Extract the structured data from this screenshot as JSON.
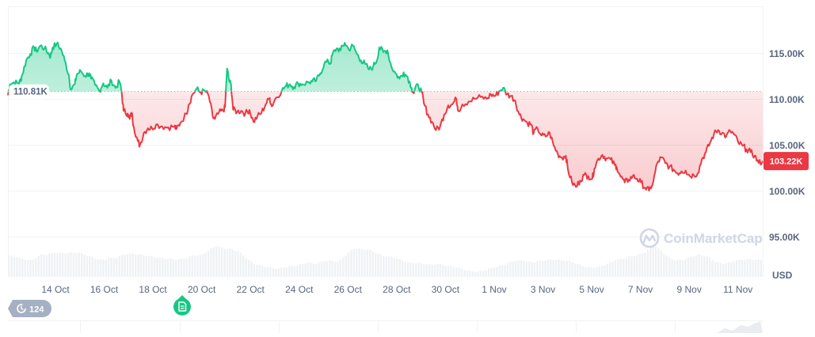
{
  "chart_data": {
    "type": "line",
    "title": "",
    "currency_label": "USD",
    "watermark": "CoinMarketCap",
    "baseline": {
      "value": 110.81,
      "label": "110.81K"
    },
    "current_price": {
      "value": 103.22,
      "label": "103.22K",
      "color": "#ea3943"
    },
    "colors": {
      "up": "#16c784",
      "down": "#ea3943",
      "volume": "#eff2f5",
      "grid": "#eff2f5",
      "axis_text": "#58667e"
    },
    "y_axis": {
      "ticks": [
        {
          "value": 115,
          "label": "115.00K"
        },
        {
          "value": 110,
          "label": "110.00K"
        },
        {
          "value": 105,
          "label": "105.00K"
        },
        {
          "value": 100,
          "label": "100.00K"
        },
        {
          "value": 95,
          "label": "95.00K"
        }
      ],
      "ylim": [
        92,
        119.5
      ]
    },
    "x_axis": {
      "ticks": [
        "14 Oct",
        "16 Oct",
        "18 Oct",
        "20 Oct",
        "22 Oct",
        "24 Oct",
        "26 Oct",
        "28 Oct",
        "30 Oct",
        "1 Nov",
        "3 Nov",
        "5 Nov",
        "7 Nov",
        "9 Nov",
        "11 Nov"
      ],
      "range_days": [
        12.0,
        43.0
      ]
    },
    "x_unit": "day index (Oct 1 = 1)",
    "y_unit": "thousands USD",
    "series": [
      {
        "name": "price",
        "points": [
          [
            12.0,
            110.4
          ],
          [
            12.1,
            111.6
          ],
          [
            12.3,
            111.8
          ],
          [
            12.5,
            111.7
          ],
          [
            12.6,
            111.9
          ],
          [
            12.7,
            112.6
          ],
          [
            12.9,
            114.2
          ],
          [
            13.1,
            114.9
          ],
          [
            13.3,
            115.6
          ],
          [
            13.4,
            115.2
          ],
          [
            13.6,
            115.8
          ],
          [
            13.8,
            115.5
          ],
          [
            14.0,
            115.0
          ],
          [
            14.1,
            114.6
          ],
          [
            14.2,
            115.6
          ],
          [
            14.4,
            116.0
          ],
          [
            14.6,
            115.5
          ],
          [
            14.8,
            114.2
          ],
          [
            15.0,
            112.6
          ],
          [
            15.1,
            111.0
          ],
          [
            15.3,
            111.6
          ],
          [
            15.4,
            112.7
          ],
          [
            15.6,
            113.0
          ],
          [
            15.8,
            112.5
          ],
          [
            16.0,
            112.8
          ],
          [
            16.1,
            112.2
          ],
          [
            16.3,
            111.5
          ],
          [
            16.5,
            110.9
          ],
          [
            16.7,
            111.7
          ],
          [
            16.9,
            111.2
          ],
          [
            17.1,
            112.0
          ],
          [
            17.3,
            111.2
          ],
          [
            17.5,
            111.9
          ],
          [
            17.6,
            110.8
          ],
          [
            17.7,
            108.7
          ],
          [
            17.9,
            108.4
          ],
          [
            18.0,
            107.8
          ],
          [
            18.1,
            108.5
          ],
          [
            18.2,
            107.0
          ],
          [
            18.4,
            105.4
          ],
          [
            18.5,
            104.9
          ],
          [
            18.7,
            106.3
          ],
          [
            18.9,
            106.8
          ],
          [
            19.1,
            106.8
          ],
          [
            19.3,
            107.2
          ],
          [
            19.6,
            107.0
          ],
          [
            19.9,
            106.9
          ],
          [
            20.2,
            107.0
          ],
          [
            20.3,
            106.7
          ],
          [
            20.5,
            107.4
          ],
          [
            20.8,
            108.4
          ],
          [
            20.9,
            109.3
          ],
          [
            21.1,
            110.5
          ],
          [
            21.3,
            111.1
          ],
          [
            21.5,
            110.7
          ],
          [
            21.7,
            110.9
          ],
          [
            21.9,
            110.3
          ],
          [
            22.1,
            108.0
          ],
          [
            22.2,
            107.8
          ],
          [
            22.4,
            108.5
          ],
          [
            22.6,
            108.7
          ],
          [
            22.7,
            109.1
          ],
          [
            22.8,
            113.3
          ],
          [
            22.9,
            112.0
          ],
          [
            23.0,
            111.5
          ],
          [
            23.1,
            108.8
          ],
          [
            23.3,
            108.6
          ],
          [
            23.5,
            108.7
          ],
          [
            23.7,
            108.4
          ],
          [
            23.9,
            108.8
          ],
          [
            24.1,
            107.5
          ],
          [
            24.3,
            108.1
          ],
          [
            24.5,
            108.5
          ],
          [
            24.7,
            109.4
          ],
          [
            24.9,
            110.1
          ],
          [
            25.0,
            109.2
          ],
          [
            25.2,
            110.1
          ],
          [
            25.5,
            110.9
          ],
          [
            25.7,
            111.4
          ],
          [
            25.9,
            111.6
          ],
          [
            26.1,
            111.3
          ],
          [
            26.3,
            111.7
          ],
          [
            26.5,
            111.6
          ],
          [
            26.8,
            111.8
          ],
          [
            27.0,
            111.9
          ],
          [
            27.2,
            112.0
          ],
          [
            27.4,
            112.8
          ],
          [
            27.6,
            113.9
          ],
          [
            27.8,
            114.0
          ],
          [
            27.9,
            113.9
          ],
          [
            28.0,
            114.9
          ],
          [
            28.2,
            115.5
          ],
          [
            28.4,
            115.3
          ],
          [
            28.6,
            116.1
          ],
          [
            28.8,
            115.4
          ],
          [
            29.0,
            115.8
          ],
          [
            29.2,
            114.9
          ],
          [
            29.4,
            114.2
          ],
          [
            29.6,
            113.8
          ],
          [
            29.8,
            113.2
          ],
          [
            30.0,
            113.5
          ],
          [
            30.2,
            114.3
          ],
          [
            30.3,
            115.6
          ],
          [
            30.5,
            115.1
          ],
          [
            30.7,
            115.3
          ],
          [
            30.9,
            113.5
          ],
          [
            31.1,
            112.8
          ],
          [
            31.3,
            112.2
          ],
          [
            31.5,
            112.9
          ],
          [
            31.7,
            112.4
          ],
          [
            31.9,
            111.2
          ],
          [
            32.0,
            110.6
          ],
          [
            32.2,
            111.6
          ],
          [
            32.4,
            110.7
          ],
          [
            32.5,
            109.5
          ],
          [
            32.7,
            108.3
          ],
          [
            32.9,
            107.5
          ],
          [
            33.1,
            106.6
          ],
          [
            33.3,
            107.0
          ],
          [
            33.5,
            108.3
          ],
          [
            33.7,
            109.3
          ],
          [
            33.9,
            109.4
          ],
          [
            34.1,
            110.0
          ],
          [
            34.2,
            108.7
          ],
          [
            34.4,
            109.4
          ],
          [
            34.7,
            109.7
          ],
          [
            35.0,
            110.0
          ],
          [
            35.3,
            110.2
          ],
          [
            35.6,
            110.0
          ],
          [
            35.8,
            110.5
          ],
          [
            36.0,
            110.3
          ],
          [
            36.2,
            110.8
          ],
          [
            36.4,
            111.2
          ],
          [
            36.6,
            110.5
          ],
          [
            36.8,
            110.3
          ],
          [
            37.0,
            109.8
          ],
          [
            37.2,
            108.3
          ],
          [
            37.4,
            107.8
          ],
          [
            37.6,
            107.4
          ],
          [
            37.8,
            107.2
          ],
          [
            37.9,
            106.2
          ],
          [
            38.1,
            106.8
          ],
          [
            38.3,
            106.0
          ],
          [
            38.5,
            105.9
          ],
          [
            38.7,
            106.3
          ],
          [
            38.9,
            104.9
          ],
          [
            39.1,
            104.0
          ],
          [
            39.3,
            103.6
          ],
          [
            39.5,
            103.8
          ],
          [
            39.6,
            102.3
          ],
          [
            39.8,
            100.9
          ],
          [
            40.0,
            100.4
          ],
          [
            40.2,
            101.1
          ],
          [
            40.4,
            101.7
          ],
          [
            40.6,
            101.6
          ],
          [
            40.8,
            101.3
          ],
          [
            40.9,
            102.4
          ],
          [
            41.1,
            103.5
          ],
          [
            41.3,
            103.9
          ],
          [
            41.5,
            103.5
          ],
          [
            41.7,
            103.4
          ],
          [
            41.9,
            102.8
          ],
          [
            42.0,
            102.6
          ],
          [
            42.2,
            101.5
          ],
          [
            42.4,
            100.9
          ],
          [
            42.6,
            101.2
          ],
          [
            42.8,
            101.6
          ],
          [
            43.0,
            101.3
          ],
          [
            43.2,
            100.9
          ],
          [
            43.4,
            100.3
          ],
          [
            43.6,
            100.0
          ],
          [
            43.8,
            100.9
          ],
          [
            44.0,
            103.0
          ],
          [
            44.2,
            103.6
          ],
          [
            44.4,
            103.0
          ],
          [
            44.6,
            102.6
          ],
          [
            44.8,
            102.3
          ],
          [
            45.0,
            101.9
          ],
          [
            45.2,
            102.1
          ],
          [
            45.4,
            102.2
          ],
          [
            45.6,
            101.6
          ],
          [
            45.8,
            101.7
          ],
          [
            46.0,
            101.9
          ],
          [
            46.2,
            103.4
          ],
          [
            46.4,
            104.2
          ],
          [
            46.6,
            105.2
          ],
          [
            46.8,
            106.2
          ],
          [
            47.0,
            106.6
          ],
          [
            47.2,
            106.3
          ],
          [
            47.4,
            105.9
          ],
          [
            47.6,
            106.5
          ],
          [
            47.8,
            106.1
          ],
          [
            48.0,
            105.2
          ],
          [
            48.2,
            104.9
          ],
          [
            48.4,
            104.5
          ],
          [
            48.6,
            104.2
          ],
          [
            48.8,
            103.8
          ],
          [
            49.0,
            103.0
          ],
          [
            49.2,
            103.22
          ]
        ],
        "note": "x values in this array use chart-pixel-mapped day indexes; the plotted range spans ~12 Oct to ~12 Nov"
      },
      {
        "name": "volume (relative 0-1)",
        "values": [
          0.58,
          0.55,
          0.48,
          0.45,
          0.6,
          0.62,
          0.66,
          0.65,
          0.66,
          0.67,
          0.6,
          0.52,
          0.46,
          0.5,
          0.53,
          0.62,
          0.64,
          0.62,
          0.58,
          0.54,
          0.52,
          0.5,
          0.48,
          0.5,
          0.6,
          0.6,
          0.72,
          0.86,
          0.78,
          0.76,
          0.7,
          0.5,
          0.35,
          0.3,
          0.26,
          0.22,
          0.28,
          0.3,
          0.34,
          0.4,
          0.36,
          0.44,
          0.44,
          0.42,
          0.62,
          0.78,
          0.76,
          0.74,
          0.64,
          0.58,
          0.54,
          0.48,
          0.4,
          0.38,
          0.36,
          0.34,
          0.36,
          0.3,
          0.28,
          0.22,
          0.16,
          0.14,
          0.18,
          0.25,
          0.3,
          0.38,
          0.44,
          0.46,
          0.4,
          0.42,
          0.46,
          0.48,
          0.46,
          0.44,
          0.36,
          0.28,
          0.26,
          0.28,
          0.36,
          0.46,
          0.5,
          0.56,
          0.6,
          0.68,
          0.88,
          0.72,
          0.52,
          0.45,
          0.48,
          0.55,
          0.62,
          0.55,
          0.42,
          0.36,
          0.4,
          0.46,
          0.48,
          0.48,
          0.46
        ]
      }
    ],
    "legend": null,
    "grid": true
  },
  "badges": {
    "history_count": "124",
    "history_icon": "clock-history-icon",
    "event_icon": "document-icon"
  }
}
